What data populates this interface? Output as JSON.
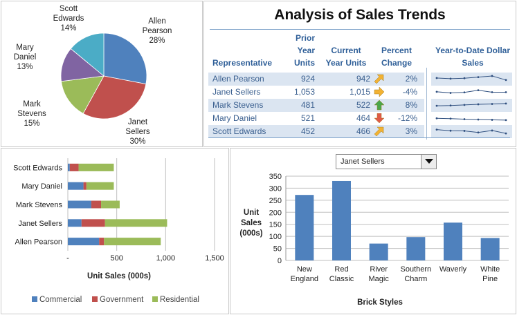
{
  "pie_chart": {
    "chart_data": {
      "type": "pie",
      "slices": [
        {
          "name": "Allen Pearson",
          "label_lines": [
            "Allen",
            "Pearson"
          ],
          "pct": "28%",
          "value": 28,
          "color": "#4f81bd"
        },
        {
          "name": "Janet Sellers",
          "label_lines": [
            "Janet",
            "Sellers"
          ],
          "pct": "30%",
          "value": 30,
          "color": "#c0504d"
        },
        {
          "name": "Mark Stevens",
          "label_lines": [
            "Mark",
            "Stevens"
          ],
          "pct": "15%",
          "value": 15,
          "color": "#9bbb59"
        },
        {
          "name": "Mary Daniel",
          "label_lines": [
            "Mary",
            "Daniel"
          ],
          "pct": "13%",
          "value": 13,
          "color": "#8064a2"
        },
        {
          "name": "Scott Edwards",
          "label_lines": [
            "Scott",
            "Edwards"
          ],
          "pct": "14%",
          "value": 14,
          "color": "#4bacc6"
        }
      ]
    }
  },
  "trends": {
    "title": "Analysis of Sales Trends",
    "headers": {
      "representative": "Representative",
      "prior_units": [
        "Prior",
        "Year",
        "Units"
      ],
      "current_units": [
        "Current",
        "Year Units"
      ],
      "percent_change": [
        "Percent",
        "Change"
      ],
      "ytd_sales": [
        "Year-to-Date Dollar",
        "Sales"
      ]
    },
    "rows": [
      {
        "name": "Allen Pearson",
        "prior": "924",
        "current": "942",
        "change": "2%",
        "arrow": "arrow-up-right-icon",
        "arrow_color": "#f2b233",
        "spark": [
          0.62,
          0.55,
          0.6,
          0.72,
          0.85,
          0.4
        ]
      },
      {
        "name": "Janet Sellers",
        "prior": "1,053",
        "current": "1,015",
        "change": "-4%",
        "arrow": "arrow-right-icon",
        "arrow_color": "#f2b233",
        "spark": [
          0.55,
          0.42,
          0.48,
          0.72,
          0.5,
          0.5
        ]
      },
      {
        "name": "Mark Stevens",
        "prior": "481",
        "current": "522",
        "change": "8%",
        "arrow": "arrow-up-icon",
        "arrow_color": "#4aa64a",
        "spark": [
          0.45,
          0.48,
          0.55,
          0.62,
          0.65,
          0.7
        ]
      },
      {
        "name": "Mary Daniel",
        "prior": "521",
        "current": "464",
        "change": "-12%",
        "arrow": "arrow-down-icon",
        "arrow_color": "#e05a47",
        "spark": [
          0.52,
          0.48,
          0.42,
          0.38,
          0.35,
          0.32
        ]
      },
      {
        "name": "Scott Edwards",
        "prior": "452",
        "current": "466",
        "change": "3%",
        "arrow": "arrow-up-right-icon",
        "arrow_color": "#f2b233",
        "spark": [
          0.72,
          0.6,
          0.58,
          0.4,
          0.62,
          0.3
        ]
      }
    ]
  },
  "bar_chart": {
    "chart_data": {
      "type": "bar",
      "orientation": "horizontal",
      "stacked": true,
      "categories": [
        "Scott Edwards",
        "Mary Daniel",
        "Mark Stevens",
        "Janet Sellers",
        "Allen Pearson"
      ],
      "series": [
        {
          "name": "Commercial",
          "color": "#4f81bd",
          "values": [
            20,
            160,
            240,
            140,
            320
          ]
        },
        {
          "name": "Government",
          "color": "#c0504d",
          "values": [
            90,
            30,
            100,
            240,
            50
          ]
        },
        {
          "name": "Residential",
          "color": "#9bbb59",
          "values": [
            360,
            280,
            190,
            635,
            580
          ]
        }
      ],
      "xlabel": "Unit Sales (000s)",
      "xlim": [
        0,
        1500
      ],
      "xticks": [
        "-",
        "500",
        "1,000",
        "1,500"
      ],
      "legend_position": "bottom"
    }
  },
  "column_chart": {
    "dropdown_value": "Janet Sellers",
    "chart_data": {
      "type": "bar",
      "categories": [
        [
          "New",
          "England"
        ],
        [
          "Red",
          "Classic"
        ],
        [
          "River",
          "Magic"
        ],
        [
          "Southern",
          "Charm"
        ],
        [
          "Waverly"
        ],
        [
          "White",
          "Pine"
        ]
      ],
      "values": [
        272,
        330,
        70,
        97,
        157,
        93
      ],
      "color": "#4f81bd",
      "ylabel": [
        "Unit",
        "Sales",
        "(000s)"
      ],
      "xlabel": "Brick Styles",
      "ylim": [
        0,
        350
      ],
      "yticks": [
        "0",
        "50",
        "100",
        "150",
        "200",
        "250",
        "300",
        "350"
      ],
      "grid": true
    }
  }
}
